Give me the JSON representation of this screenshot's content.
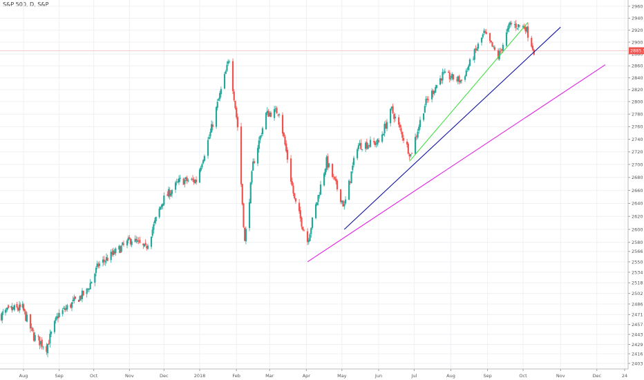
{
  "header": {
    "title": "S&P 500, D, S&P"
  },
  "chart_data": {
    "type": "candlestick",
    "title": "S&P 500, D, S&P",
    "xlabel": "",
    "ylabel": "",
    "ylim": [
      2395,
      2970
    ],
    "ticks_y": [
      2960,
      2940,
      2920,
      2900,
      2880,
      2860,
      2840,
      2820,
      2800,
      2780,
      2760,
      2740,
      2720,
      2700,
      2680,
      2660,
      2640,
      2620,
      2600,
      2580,
      2566,
      2550,
      2534,
      2518,
      2502,
      2486,
      2471,
      2457,
      2443,
      2429,
      2416,
      2403
    ],
    "ticks_x": [
      {
        "label": "Aug",
        "date": "2017-08-01"
      },
      {
        "label": "Sep",
        "date": "2017-09-01"
      },
      {
        "label": "Oct",
        "date": "2017-10-01"
      },
      {
        "label": "Nov",
        "date": "2017-11-01"
      },
      {
        "label": "Dec",
        "date": "2017-12-01"
      },
      {
        "label": "2018",
        "date": "2018-01-01"
      },
      {
        "label": "Feb",
        "date": "2018-02-01"
      },
      {
        "label": "Mar",
        "date": "2018-03-01"
      },
      {
        "label": "Apr",
        "date": "2018-04-01"
      },
      {
        "label": "May",
        "date": "2018-05-01"
      },
      {
        "label": "Jun",
        "date": "2018-06-01"
      },
      {
        "label": "Jul",
        "date": "2018-07-01"
      },
      {
        "label": "Aug",
        "date": "2018-08-01"
      },
      {
        "label": "Sep",
        "date": "2018-09-01"
      },
      {
        "label": "Oct",
        "date": "2018-10-01"
      },
      {
        "label": "Nov",
        "date": "2018-11-01"
      },
      {
        "label": "Dec",
        "date": "2018-12-01"
      },
      {
        "label": "24",
        "date": "2018-12-24"
      }
    ],
    "x_range": [
      "2017-07-05",
      "2018-12-27"
    ],
    "last_price": {
      "label": "2885.57",
      "value": 2885.57
    },
    "series": [
      {
        "values": [
          {
            "date": "2017-07-05",
            "close": 2470
          },
          {
            "date": "2017-07-17",
            "close": 2478
          },
          {
            "date": "2017-07-31",
            "close": 2480
          },
          {
            "date": "2017-08-10",
            "close": 2440
          },
          {
            "date": "2017-08-21",
            "close": 2425
          },
          {
            "date": "2017-08-31",
            "close": 2470
          },
          {
            "date": "2017-09-11",
            "close": 2485
          },
          {
            "date": "2017-09-25",
            "close": 2505
          },
          {
            "date": "2017-10-05",
            "close": 2545
          },
          {
            "date": "2017-10-20",
            "close": 2565
          },
          {
            "date": "2017-11-03",
            "close": 2585
          },
          {
            "date": "2017-11-15",
            "close": 2570
          },
          {
            "date": "2017-11-30",
            "close": 2645
          },
          {
            "date": "2017-12-15",
            "close": 2675
          },
          {
            "date": "2017-12-29",
            "close": 2675
          },
          {
            "date": "2018-01-10",
            "close": 2750
          },
          {
            "date": "2018-01-26",
            "close": 2872
          },
          {
            "date": "2018-02-02",
            "close": 2760
          },
          {
            "date": "2018-02-08",
            "close": 2580
          },
          {
            "date": "2018-02-15",
            "close": 2700
          },
          {
            "date": "2018-02-26",
            "close": 2780
          },
          {
            "date": "2018-03-09",
            "close": 2785
          },
          {
            "date": "2018-03-22",
            "close": 2645
          },
          {
            "date": "2018-04-02",
            "close": 2582
          },
          {
            "date": "2018-04-18",
            "close": 2705
          },
          {
            "date": "2018-05-03",
            "close": 2635
          },
          {
            "date": "2018-05-14",
            "close": 2730
          },
          {
            "date": "2018-06-01",
            "close": 2735
          },
          {
            "date": "2018-06-12",
            "close": 2787
          },
          {
            "date": "2018-06-28",
            "close": 2715
          },
          {
            "date": "2018-07-10",
            "close": 2795
          },
          {
            "date": "2018-07-25",
            "close": 2845
          },
          {
            "date": "2018-08-10",
            "close": 2835
          },
          {
            "date": "2018-08-29",
            "close": 2915
          },
          {
            "date": "2018-09-10",
            "close": 2875
          },
          {
            "date": "2018-09-20",
            "close": 2930
          },
          {
            "date": "2018-10-03",
            "close": 2925
          },
          {
            "date": "2018-10-10",
            "close": 2885.57
          }
        ]
      }
    ],
    "trendlines": [
      {
        "color": "#e020e0",
        "from": {
          "date": "2018-04-02",
          "value": 2550
        },
        "to": {
          "date": "2018-12-08",
          "value": 2862
        }
      },
      {
        "color": "#1010a0",
        "from": {
          "date": "2018-05-03",
          "value": 2600
        },
        "to": {
          "date": "2018-11-01",
          "value": 2925
        }
      },
      {
        "color": "#40e040",
        "from": {
          "date": "2018-06-27",
          "value": 2705
        },
        "to": {
          "date": "2018-10-05",
          "value": 2933
        }
      }
    ],
    "colors": {
      "up": "#26a69a",
      "down": "#ef5350",
      "grid": "#eef0f3",
      "last_line": "#f4b8b8",
      "tag": "#ef5350"
    },
    "grid": true
  }
}
